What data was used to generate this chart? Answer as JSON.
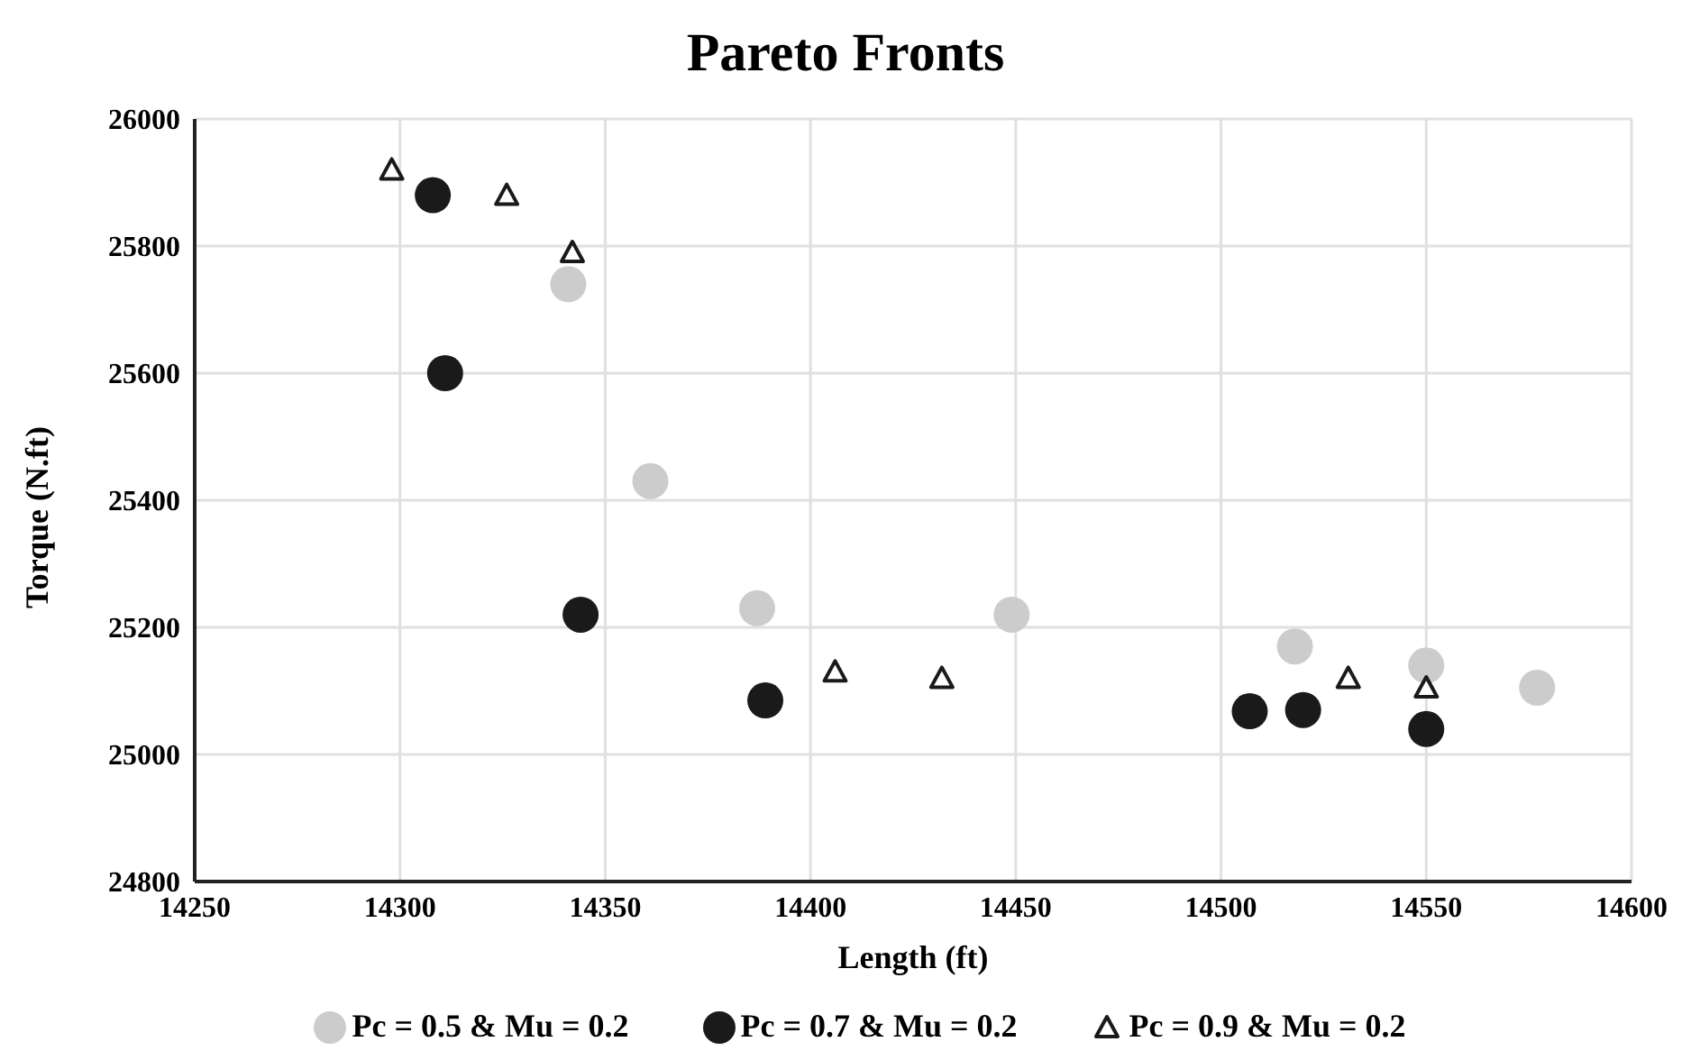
{
  "chart_data": {
    "type": "scatter",
    "title": "Pareto Fronts",
    "xlabel": "Length (ft)",
    "ylabel": "Torque (N.ft)",
    "xlim": [
      14250,
      14600
    ],
    "xticks": [
      14250,
      14300,
      14350,
      14400,
      14450,
      14500,
      14550,
      14600
    ],
    "ylim": [
      24800,
      26000
    ],
    "yticks": [
      24800,
      25000,
      25200,
      25400,
      25600,
      25800,
      26000
    ],
    "grid": true,
    "legend": "bottom",
    "series": [
      {
        "name": "Pc = 0.5 & Mu = 0.2",
        "color": "#cccccc",
        "marker": "circle",
        "x": [
          14341,
          14361,
          14387,
          14449,
          14518,
          14550,
          14577
        ],
        "values": [
          25740,
          25430,
          25230,
          25220,
          25170,
          25140,
          25105
        ]
      },
      {
        "name": "Pc = 0.7 & Mu = 0.2",
        "color": "#1a1a1a",
        "marker": "circle",
        "x": [
          14308,
          14311,
          14344,
          14389,
          14507,
          14520,
          14550
        ],
        "values": [
          25880,
          25600,
          25220,
          25085,
          25068,
          25070,
          25040
        ]
      },
      {
        "name": "Pc = 0.9 & Mu = 0.2",
        "color": "#1a1a1a",
        "marker": "triangle",
        "x": [
          14298,
          14326,
          14342,
          14406,
          14432,
          14531,
          14550
        ],
        "values": [
          25920,
          25880,
          25790,
          25130,
          25120,
          25120,
          25105
        ]
      }
    ]
  }
}
